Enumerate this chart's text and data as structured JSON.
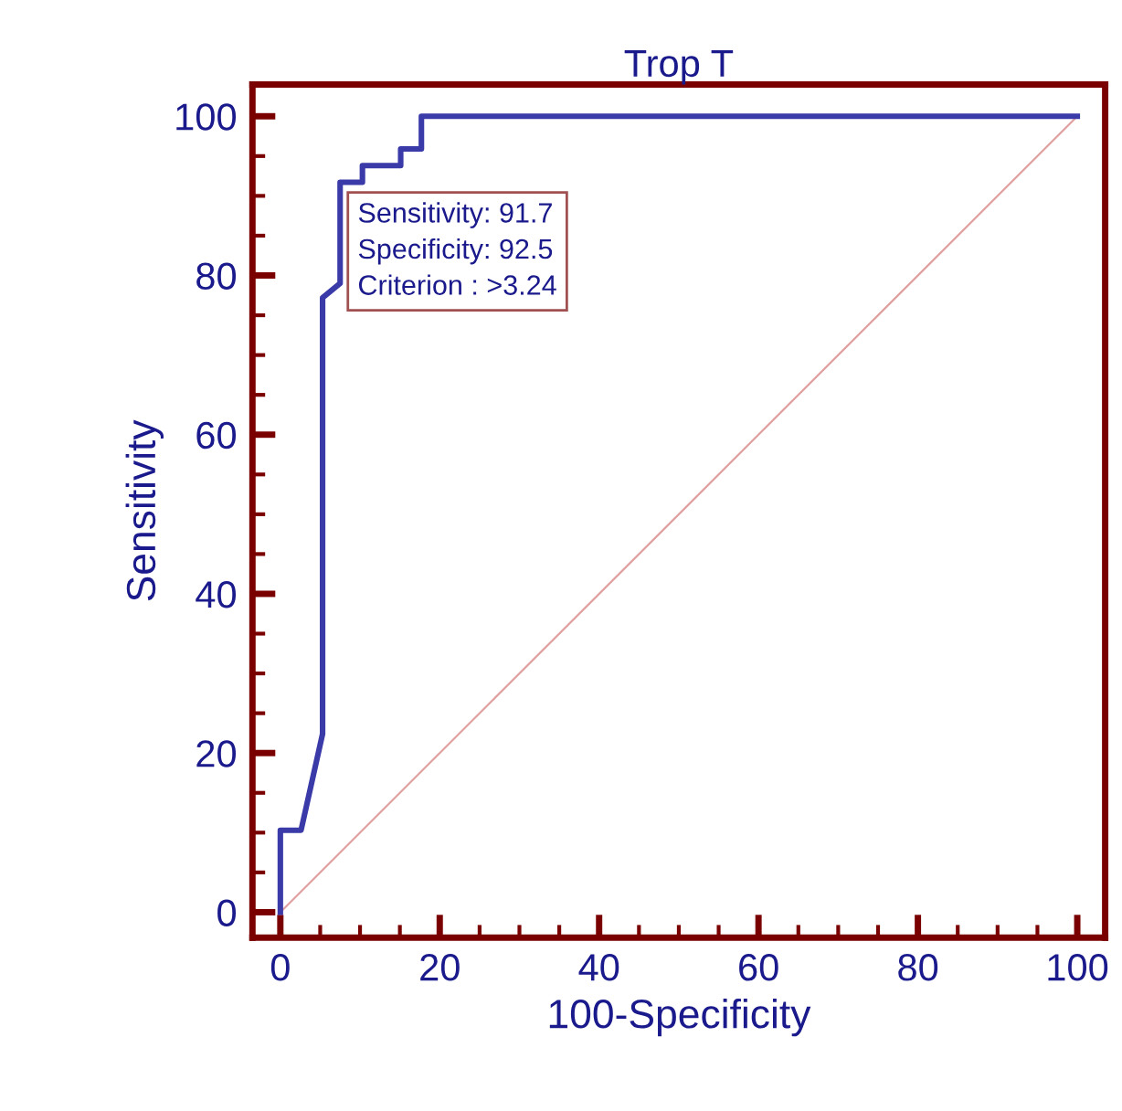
{
  "chart_data": {
    "type": "line",
    "title": "Trop T",
    "xlabel": "100-Specificity",
    "ylabel": "Sensitivity",
    "xlim": [
      -3.5,
      103.5
    ],
    "ylim": [
      -3.2,
      104
    ],
    "xticks": [
      0,
      {
        "value": 5,
        "label": null
      },
      {
        "value": 10,
        "label": null
      },
      {
        "value": 15,
        "label": null
      },
      20,
      {
        "value": 25,
        "label": null
      },
      {
        "value": 30,
        "label": null
      },
      {
        "value": 35,
        "label": null
      },
      40,
      {
        "value": 45,
        "label": null
      },
      {
        "value": 50,
        "label": null
      },
      {
        "value": 55,
        "label": null
      },
      60,
      {
        "value": 65,
        "label": null
      },
      {
        "value": 70,
        "label": null
      },
      {
        "value": 75,
        "label": null
      },
      80,
      {
        "value": 85,
        "label": null
      },
      {
        "value": 90,
        "label": null
      },
      {
        "value": 95,
        "label": null
      },
      100
    ],
    "yticks": [
      0,
      {
        "value": 5,
        "label": null
      },
      {
        "value": 10,
        "label": null
      },
      {
        "value": 15,
        "label": null
      },
      20,
      {
        "value": 25,
        "label": null
      },
      {
        "value": 30,
        "label": null
      },
      {
        "value": 35,
        "label": null
      },
      40,
      {
        "value": 45,
        "label": null
      },
      {
        "value": 50,
        "label": null
      },
      {
        "value": 55,
        "label": null
      },
      60,
      {
        "value": 65,
        "label": null
      },
      {
        "value": 70,
        "label": null
      },
      {
        "value": 75,
        "label": null
      },
      80,
      {
        "value": 85,
        "label": null
      },
      {
        "value": 90,
        "label": null
      },
      {
        "value": 95,
        "label": null
      },
      100
    ],
    "grid": false,
    "legend": false,
    "marker": "none",
    "series": [
      {
        "color": "#3a3aa8",
        "line_style": "solid",
        "x": [
          0,
          0,
          2.6,
          5.3,
          5.3,
          7.5,
          7.5,
          10.3,
          10.3,
          15.1,
          15.1,
          17.7,
          17.7,
          100
        ],
        "values": [
          0,
          10.3,
          10.3,
          22.4,
          77.2,
          79,
          91.7,
          91.7,
          93.8,
          93.8,
          95.9,
          95.9,
          100,
          100
        ]
      },
      {
        "color": "#e0a0a0",
        "line_style": "solid",
        "x": [
          0,
          100
        ],
        "values": [
          0,
          100
        ]
      }
    ],
    "annotations": [
      {
        "text": "Sensitivity: 91.7\nSpecificity: 92.5\nCriterion : >3.24",
        "x": 7.5,
        "y": 91.7
      }
    ]
  }
}
